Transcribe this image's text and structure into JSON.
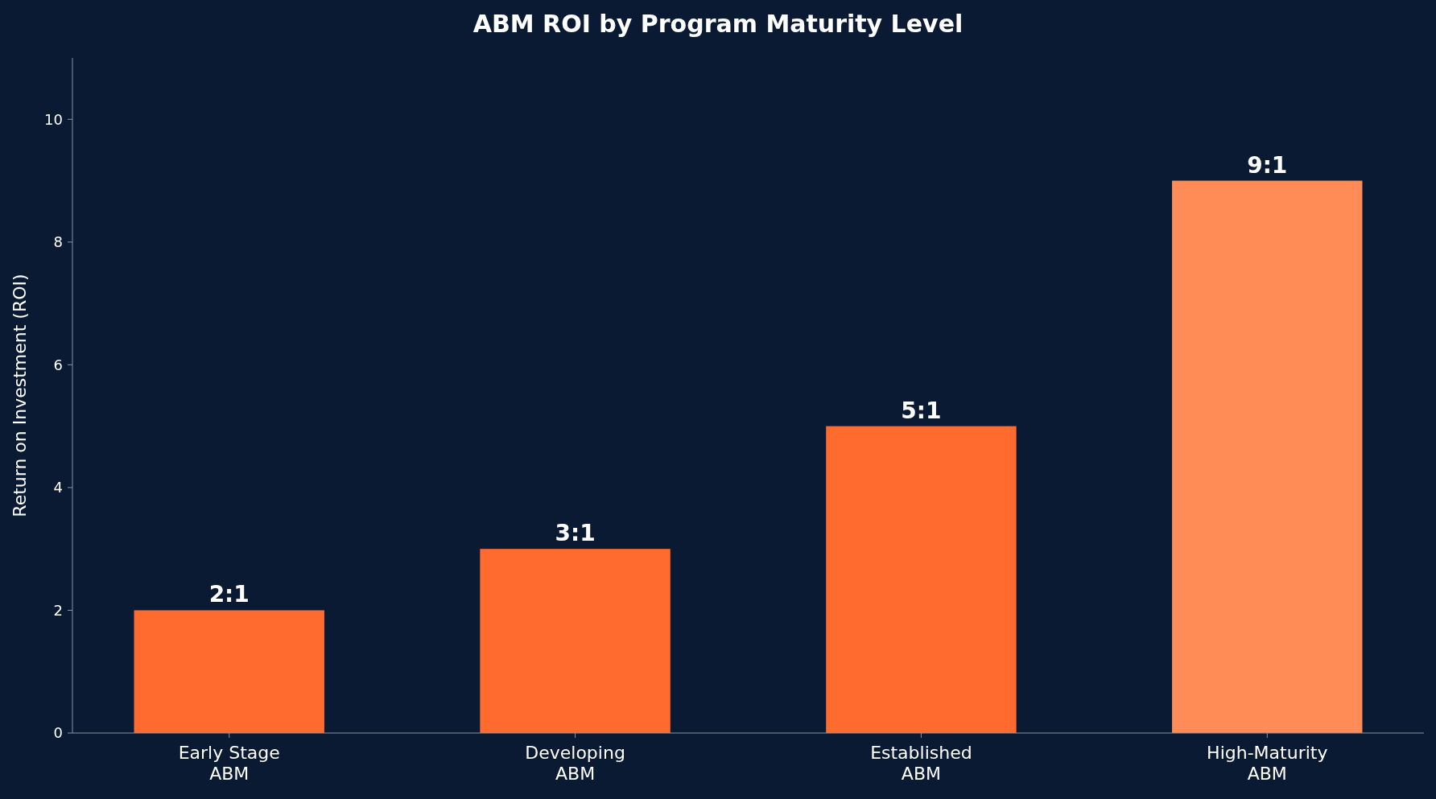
{
  "chart_data": {
    "type": "bar",
    "title": "ABM ROI by Program Maturity Level",
    "ylabel": "Return on Investment (ROI)",
    "categories": [
      "Early Stage\nABM",
      "Developing\nABM",
      "Established\nABM",
      "High-Maturity\nABM"
    ],
    "values": [
      2,
      3,
      5,
      9
    ],
    "colors": [
      "#ff6b2f",
      "#ff6b2f",
      "#ff6b2f",
      "#ff8c57"
    ],
    "value_labels": [
      "2:1",
      "3:1",
      "5:1",
      "9:1"
    ],
    "ylim": [
      0,
      11
    ],
    "yticks": [
      0,
      2,
      4,
      6,
      8,
      10
    ],
    "grid": false
  }
}
